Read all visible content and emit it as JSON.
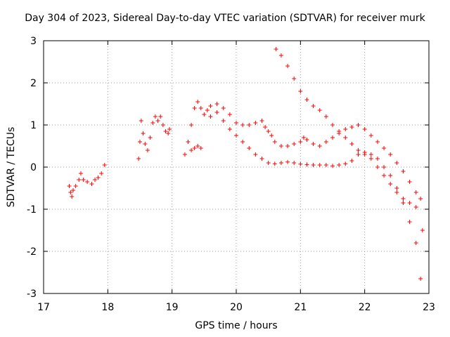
{
  "chart_data": {
    "type": "scatter",
    "title": "Day 304 of 2023, Sidereal Day-to-day VTEC variation (SDTVAR) for receiver murk",
    "xlabel": "GPS time / hours",
    "ylabel": "SDTVAR / TECUs",
    "xlim": [
      17,
      23
    ],
    "ylim": [
      -3,
      3
    ],
    "xticks": [
      "17",
      "18",
      "19",
      "20",
      "21",
      "22",
      "23"
    ],
    "yticks": [
      "3",
      "2",
      "1",
      "0",
      "-1",
      "-2",
      "-3"
    ],
    "grid": true,
    "marker": "+",
    "marker_color": "#ff0000",
    "series": [
      {
        "name": "SDTVAR",
        "points": [
          [
            17.4,
            -0.45
          ],
          [
            17.42,
            -0.6
          ],
          [
            17.44,
            -0.7
          ],
          [
            17.46,
            -0.55
          ],
          [
            17.5,
            -0.45
          ],
          [
            17.55,
            -0.3
          ],
          [
            17.58,
            -0.15
          ],
          [
            17.62,
            -0.3
          ],
          [
            17.68,
            -0.35
          ],
          [
            17.75,
            -0.4
          ],
          [
            17.8,
            -0.3
          ],
          [
            17.85,
            -0.25
          ],
          [
            17.9,
            -0.15
          ],
          [
            17.95,
            0.05
          ],
          [
            18.48,
            0.2
          ],
          [
            18.5,
            0.6
          ],
          [
            18.52,
            1.1
          ],
          [
            18.55,
            0.8
          ],
          [
            18.58,
            0.55
          ],
          [
            18.62,
            0.4
          ],
          [
            18.66,
            0.7
          ],
          [
            18.7,
            1.05
          ],
          [
            18.74,
            1.2
          ],
          [
            18.78,
            1.1
          ],
          [
            18.82,
            1.2
          ],
          [
            18.86,
            1.0
          ],
          [
            18.9,
            0.85
          ],
          [
            18.94,
            0.8
          ],
          [
            18.96,
            0.9
          ],
          [
            19.2,
            0.3
          ],
          [
            19.25,
            0.6
          ],
          [
            19.3,
            0.4
          ],
          [
            19.35,
            0.45
          ],
          [
            19.4,
            0.5
          ],
          [
            19.45,
            0.45
          ],
          [
            19.3,
            1.0
          ],
          [
            19.35,
            1.4
          ],
          [
            19.4,
            1.55
          ],
          [
            19.45,
            1.4
          ],
          [
            19.5,
            1.25
          ],
          [
            19.55,
            1.35
          ],
          [
            19.6,
            1.45
          ],
          [
            19.7,
            1.5
          ],
          [
            19.8,
            1.4
          ],
          [
            19.9,
            1.25
          ],
          [
            20.0,
            1.05
          ],
          [
            20.1,
            1.0
          ],
          [
            20.2,
            1.0
          ],
          [
            20.3,
            1.05
          ],
          [
            20.4,
            1.1
          ],
          [
            20.45,
            0.95
          ],
          [
            20.5,
            0.85
          ],
          [
            20.55,
            0.75
          ],
          [
            20.6,
            0.6
          ],
          [
            20.7,
            0.5
          ],
          [
            20.8,
            0.5
          ],
          [
            20.9,
            0.55
          ],
          [
            21.0,
            0.6
          ],
          [
            21.05,
            0.7
          ],
          [
            21.1,
            0.65
          ],
          [
            21.2,
            0.55
          ],
          [
            21.3,
            0.5
          ],
          [
            21.4,
            0.6
          ],
          [
            21.5,
            0.7
          ],
          [
            21.6,
            0.8
          ],
          [
            21.7,
            0.9
          ],
          [
            21.8,
            0.95
          ],
          [
            21.9,
            1.0
          ],
          [
            22.0,
            0.9
          ],
          [
            22.1,
            0.75
          ],
          [
            22.2,
            0.6
          ],
          [
            22.3,
            0.45
          ],
          [
            22.4,
            0.3
          ],
          [
            22.5,
            0.1
          ],
          [
            22.6,
            -0.1
          ],
          [
            22.7,
            -0.35
          ],
          [
            22.8,
            -0.6
          ],
          [
            22.87,
            -0.75
          ],
          [
            19.6,
            1.2
          ],
          [
            19.7,
            1.3
          ],
          [
            19.8,
            1.1
          ],
          [
            19.9,
            0.9
          ],
          [
            20.0,
            0.75
          ],
          [
            20.1,
            0.6
          ],
          [
            20.2,
            0.45
          ],
          [
            20.3,
            0.3
          ],
          [
            20.4,
            0.2
          ],
          [
            20.5,
            0.1
          ],
          [
            20.6,
            0.08
          ],
          [
            20.7,
            0.1
          ],
          [
            20.8,
            0.12
          ],
          [
            20.9,
            0.1
          ],
          [
            21.0,
            0.07
          ],
          [
            21.1,
            0.06
          ],
          [
            21.2,
            0.05
          ],
          [
            21.3,
            0.05
          ],
          [
            21.4,
            0.05
          ],
          [
            21.5,
            0.03
          ],
          [
            21.6,
            0.05
          ],
          [
            21.7,
            0.08
          ],
          [
            21.8,
            0.15
          ],
          [
            21.9,
            0.3
          ],
          [
            22.0,
            0.35
          ],
          [
            22.1,
            0.3
          ],
          [
            22.2,
            0.2
          ],
          [
            22.3,
            0.0
          ],
          [
            22.4,
            -0.2
          ],
          [
            22.5,
            -0.5
          ],
          [
            22.6,
            -0.85
          ],
          [
            22.7,
            -1.3
          ],
          [
            22.8,
            -1.8
          ],
          [
            22.87,
            -2.65
          ],
          [
            20.62,
            2.8
          ],
          [
            20.7,
            2.65
          ],
          [
            20.8,
            2.4
          ],
          [
            20.9,
            2.1
          ],
          [
            21.0,
            1.8
          ],
          [
            21.1,
            1.6
          ],
          [
            21.2,
            1.45
          ],
          [
            21.3,
            1.35
          ],
          [
            21.4,
            1.2
          ],
          [
            21.5,
            1.0
          ],
          [
            21.6,
            0.85
          ],
          [
            21.7,
            0.7
          ],
          [
            21.8,
            0.55
          ],
          [
            21.9,
            0.4
          ],
          [
            22.0,
            0.3
          ],
          [
            22.1,
            0.2
          ],
          [
            22.2,
            0.0
          ],
          [
            22.3,
            -0.2
          ],
          [
            22.4,
            -0.4
          ],
          [
            22.5,
            -0.6
          ],
          [
            22.6,
            -0.75
          ],
          [
            22.7,
            -0.85
          ],
          [
            22.8,
            -0.95
          ],
          [
            22.9,
            -1.5
          ]
        ]
      }
    ]
  }
}
